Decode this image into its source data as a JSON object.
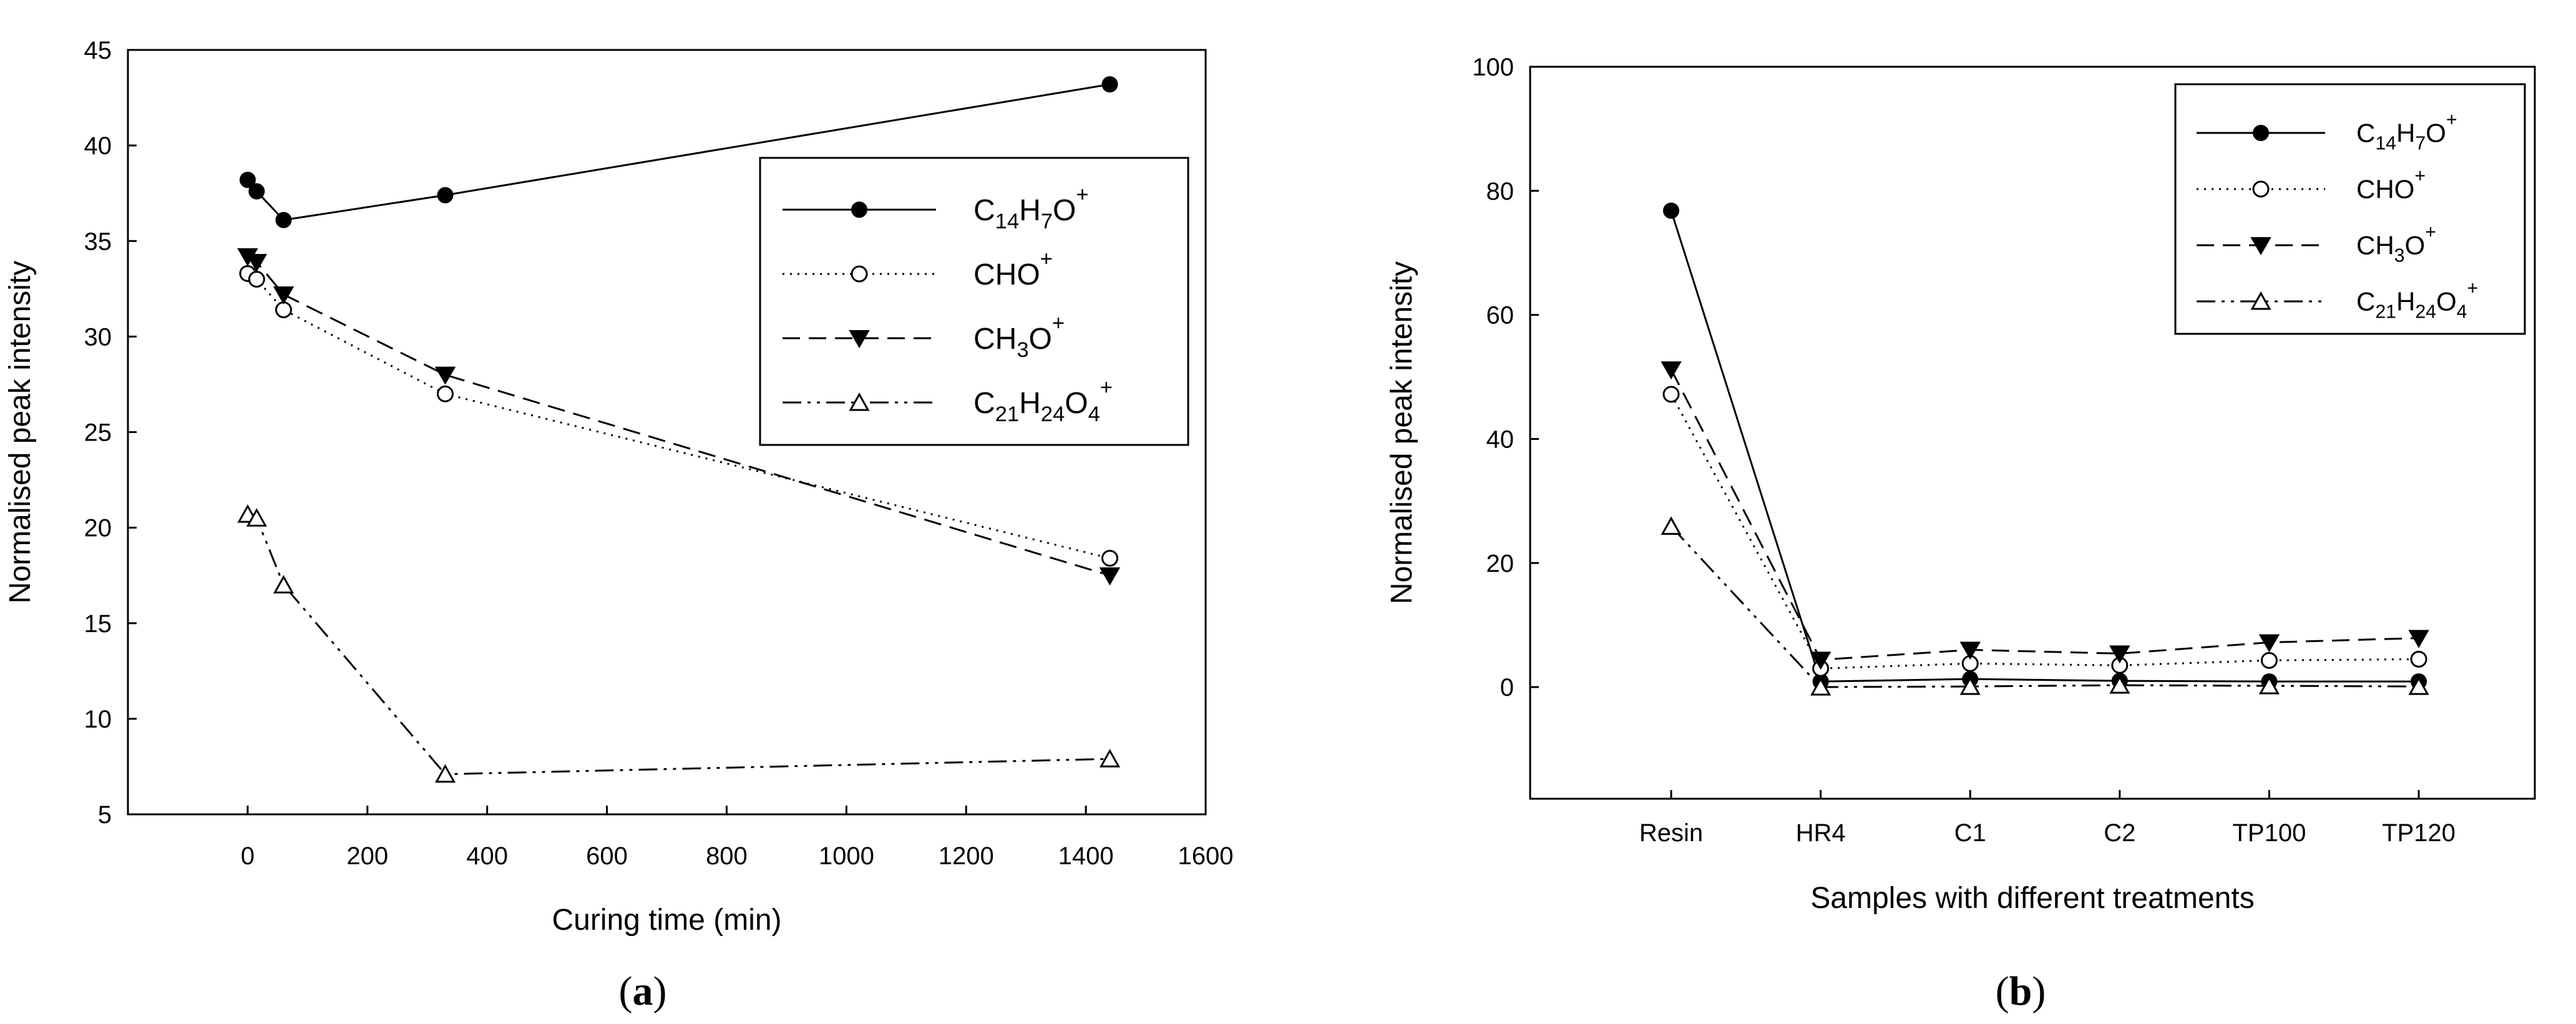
{
  "chart_data": [
    {
      "panel_label": "(a)",
      "panel_letter": "a",
      "type": "line",
      "title": "",
      "xlabel": "Curing time (min)",
      "ylabel": "Normalised peak intensity",
      "xlim": [
        -200,
        1600
      ],
      "ylim": [
        5,
        45
      ],
      "xticks": [
        0,
        200,
        400,
        600,
        800,
        1000,
        1200,
        1400,
        1600
      ],
      "yticks": [
        5,
        10,
        15,
        20,
        25,
        30,
        35,
        40,
        45
      ],
      "legend_position": "top-right",
      "series": [
        {
          "name": "C14H7O+",
          "label_parts": [
            [
              "C",
              ""
            ],
            [
              "14",
              "sub"
            ],
            [
              "H",
              ""
            ],
            [
              "7",
              "sub"
            ],
            [
              "O",
              ""
            ],
            [
              "+",
              "sup"
            ]
          ],
          "marker": "filled-circle",
          "dash": "solid",
          "x": [
            0,
            15,
            60,
            330,
            1440
          ],
          "y": [
            38.2,
            37.6,
            36.1,
            37.4,
            43.2
          ]
        },
        {
          "name": "CHO+",
          "label_parts": [
            [
              "CHO",
              ""
            ],
            [
              "+",
              "sup"
            ]
          ],
          "marker": "open-circle",
          "dash": "dotted",
          "x": [
            0,
            15,
            60,
            330,
            1440
          ],
          "y": [
            33.3,
            33.0,
            31.4,
            27.0,
            18.4
          ]
        },
        {
          "name": "CH3O+",
          "label_parts": [
            [
              "CH",
              ""
            ],
            [
              "3",
              "sub"
            ],
            [
              "O",
              ""
            ],
            [
              "+",
              "sup"
            ]
          ],
          "marker": "filled-triangle-down",
          "dash": "dashed",
          "x": [
            0,
            15,
            60,
            330,
            1440
          ],
          "y": [
            34.2,
            33.9,
            32.2,
            28.0,
            17.5
          ]
        },
        {
          "name": "C21H24O4+",
          "label_parts": [
            [
              "C",
              ""
            ],
            [
              "21",
              "sub"
            ],
            [
              "H",
              ""
            ],
            [
              "24",
              "sub"
            ],
            [
              "O",
              ""
            ],
            [
              "4",
              "sub"
            ],
            [
              "+",
              "sup"
            ]
          ],
          "marker": "open-triangle-up",
          "dash": "dashdotdot",
          "x": [
            0,
            15,
            60,
            330,
            1440
          ],
          "y": [
            20.7,
            20.5,
            17.0,
            7.1,
            7.9
          ]
        }
      ]
    },
    {
      "panel_label": "(b)",
      "panel_letter": "b",
      "type": "line",
      "title": "",
      "xlabel": "Samples with different treatments",
      "ylabel": "Normalised peak intensity",
      "categories": [
        "Resin",
        "HR4",
        "C1",
        "C2",
        "TP100",
        "TP120"
      ],
      "ylim": [
        -18,
        100
      ],
      "yticks": [
        0,
        20,
        40,
        60,
        80,
        100
      ],
      "legend_position": "top-right",
      "series": [
        {
          "name": "C14H7O+",
          "label_parts": [
            [
              "C",
              ""
            ],
            [
              "14",
              "sub"
            ],
            [
              "H",
              ""
            ],
            [
              "7",
              "sub"
            ],
            [
              "O",
              ""
            ],
            [
              "+",
              "sup"
            ]
          ],
          "marker": "filled-circle",
          "dash": "solid",
          "values": [
            76.8,
            0.9,
            1.3,
            1.0,
            0.9,
            0.9
          ]
        },
        {
          "name": "CHO+",
          "label_parts": [
            [
              "CHO",
              ""
            ],
            [
              "+",
              "sup"
            ]
          ],
          "marker": "open-circle",
          "dash": "dotted",
          "values": [
            47.2,
            3.0,
            3.8,
            3.5,
            4.3,
            4.5
          ]
        },
        {
          "name": "CH3O+",
          "label_parts": [
            [
              "CH",
              ""
            ],
            [
              "3",
              "sub"
            ],
            [
              "O",
              ""
            ],
            [
              "+",
              "sup"
            ]
          ],
          "marker": "filled-triangle-down",
          "dash": "dashed",
          "values": [
            51.2,
            4.4,
            6.0,
            5.4,
            7.2,
            7.9
          ]
        },
        {
          "name": "C21H24O4+",
          "label_parts": [
            [
              "C",
              ""
            ],
            [
              "21",
              "sub"
            ],
            [
              "H",
              ""
            ],
            [
              "24",
              "sub"
            ],
            [
              "O",
              ""
            ],
            [
              "4",
              "sub"
            ],
            [
              "+",
              "sup"
            ]
          ],
          "marker": "open-triangle-up",
          "dash": "dashdotdot",
          "values": [
            25.9,
            0.0,
            0.1,
            0.3,
            0.2,
            0.1
          ]
        }
      ]
    }
  ]
}
